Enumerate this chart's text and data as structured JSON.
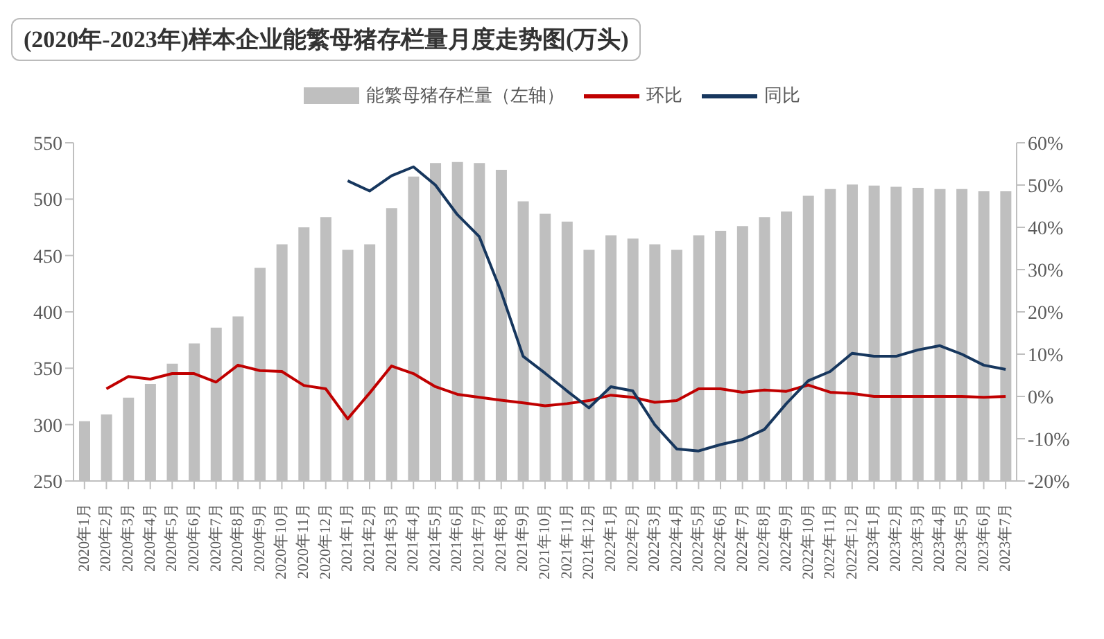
{
  "chart_data": {
    "type": "bar",
    "title": "(2020年-2023年)样本企业能繁母猪存栏量月度走势图(万头)",
    "categories": [
      "2020年1月",
      "2020年2月",
      "2020年3月",
      "2020年4月",
      "2020年5月",
      "2020年6月",
      "2020年7月",
      "2020年8月",
      "2020年9月",
      "2020年10月",
      "2020年11月",
      "2020年12月",
      "2021年1月",
      "2021年2月",
      "2021年3月",
      "2021年4月",
      "2021年5月",
      "2021年6月",
      "2021年7月",
      "2021年8月",
      "2021年9月",
      "2021年10月",
      "2021年11月",
      "2021年12月",
      "2022年1月",
      "2022年2月",
      "2022年3月",
      "2022年4月",
      "2022年5月",
      "2022年6月",
      "2022年7月",
      "2022年8月",
      "2022年9月",
      "2022年10月",
      "2022年11月",
      "2022年12月",
      "2023年1月",
      "2023年2月",
      "2023年3月",
      "2023年4月",
      "2023年5月",
      "2023年6月",
      "2023年7月"
    ],
    "series": [
      {
        "name": "能繁母猪存栏量（左轴）",
        "color": "#bfbfbf",
        "values": [
          303,
          309,
          324,
          336,
          354,
          372,
          386,
          396,
          439,
          460,
          475,
          484,
          455,
          460,
          492,
          520,
          532,
          533,
          532,
          526,
          498,
          487,
          480,
          455,
          468,
          465,
          460,
          455,
          468,
          472,
          476,
          484,
          489,
          503,
          509,
          513,
          512,
          511,
          510,
          509,
          509,
          507,
          507
        ]
      },
      {
        "name": "环比",
        "type": "line",
        "axis": "y2",
        "color": "#c00000",
        "values": [
          null,
          1.8,
          4.7,
          4.1,
          5.4,
          5.4,
          3.4,
          7.4,
          6.1,
          5.9,
          2.6,
          1.8,
          -5.3,
          0.8,
          7.2,
          5.4,
          2.3,
          0.5,
          -0.2,
          -0.9,
          -1.5,
          -2.2,
          -1.7,
          -1.0,
          0.3,
          -0.2,
          -1.4,
          -1.0,
          1.8,
          1.8,
          1.0,
          1.5,
          1.2,
          2.7,
          1.0,
          0.7,
          0,
          0,
          0,
          0,
          0,
          -0.2,
          0
        ]
      },
      {
        "name": "同比",
        "type": "line",
        "axis": "y2",
        "color": "#17375e",
        "values": [
          null,
          null,
          null,
          null,
          null,
          null,
          null,
          null,
          null,
          null,
          null,
          null,
          51,
          48.6,
          52.2,
          54.3,
          50,
          43,
          37.8,
          24.7,
          9.5,
          5.5,
          1.3,
          -2.7,
          2.3,
          1.3,
          -6.7,
          -12.4,
          -12.9,
          -11.4,
          -10.2,
          -7.8,
          -1.7,
          3.7,
          5.9,
          10.2,
          9.5,
          9.5,
          11,
          12,
          10,
          7.4,
          6.4
        ]
      }
    ],
    "ylim": [
      250,
      550
    ],
    "yticks": [
      250,
      300,
      350,
      400,
      450,
      500,
      550
    ],
    "y2lim": [
      -20,
      60
    ],
    "y2ticks": [
      {
        "value": -20,
        "label": "-20%"
      },
      {
        "value": -10,
        "label": "-10%"
      },
      {
        "value": 0,
        "label": "0%"
      },
      {
        "value": 10,
        "label": "10%"
      },
      {
        "value": 20,
        "label": "20%"
      },
      {
        "value": 30,
        "label": "30%"
      },
      {
        "value": 40,
        "label": "40%"
      },
      {
        "value": 50,
        "label": "50%"
      },
      {
        "value": 60,
        "label": "60%"
      }
    ],
    "grid": false,
    "legend": "top"
  }
}
